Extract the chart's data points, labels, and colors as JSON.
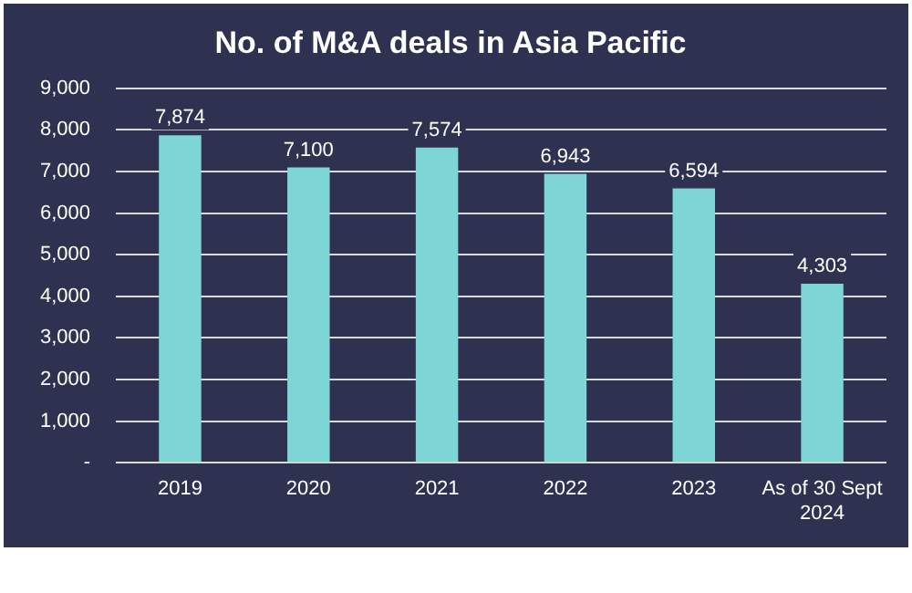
{
  "chart_data": {
    "type": "bar",
    "title": "No. of M&A deals in Asia Pacific",
    "categories": [
      "2019",
      "2020",
      "2021",
      "2022",
      "2023",
      "As of 30 Sept 2024"
    ],
    "values": [
      7874,
      7100,
      7574,
      6943,
      6594,
      4303
    ],
    "value_labels": [
      "7,874",
      "7,100",
      "7,574",
      "6,943",
      "6,594",
      "4,303"
    ],
    "color": "#7dd5d5",
    "ylim": [
      0,
      9000
    ],
    "yticks": [
      {
        "value": 0,
        "label": "-"
      },
      {
        "value": 1000,
        "label": "1,000"
      },
      {
        "value": 2000,
        "label": "2,000"
      },
      {
        "value": 3000,
        "label": "3,000"
      },
      {
        "value": 4000,
        "label": "4,000"
      },
      {
        "value": 5000,
        "label": "5,000"
      },
      {
        "value": 6000,
        "label": "6,000"
      },
      {
        "value": 7000,
        "label": "7,000"
      },
      {
        "value": 8000,
        "label": "8,000"
      },
      {
        "value": 9000,
        "label": "9,000"
      }
    ],
    "grid": "y",
    "legend": false
  }
}
